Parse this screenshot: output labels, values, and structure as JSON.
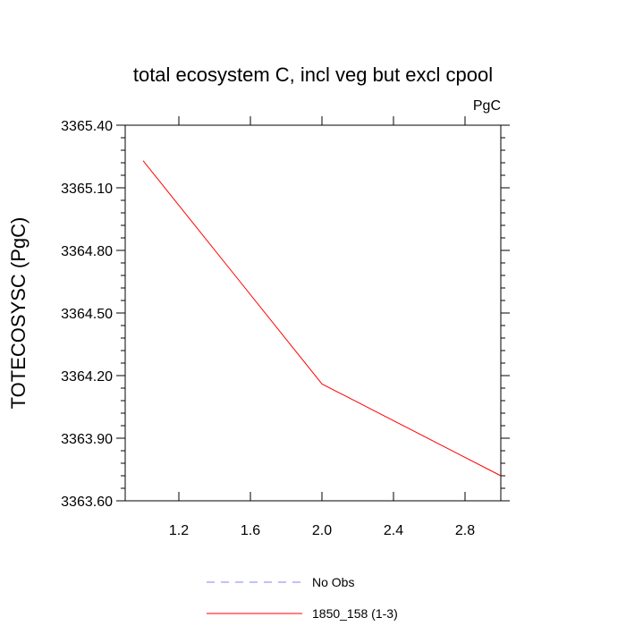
{
  "chart_data": {
    "type": "line",
    "title": "total ecosystem C, incl veg but excl cpool",
    "units_label": "PgC",
    "xlabel": "",
    "ylabel": "TOTECOSYSC  (PgC)",
    "xlim": [
      0.9,
      3.0
    ],
    "ylim": [
      3363.6,
      3365.4
    ],
    "xticks": [
      "1.2",
      "1.6",
      "2.0",
      "2.4",
      "2.8"
    ],
    "yticks": [
      "3365.40",
      "3365.10",
      "3364.80",
      "3364.50",
      "3364.20",
      "3363.90",
      "3363.60"
    ],
    "grid": false,
    "legend_position": "bottom-center",
    "series": [
      {
        "name": "1850_158 (1-3)",
        "color": "#ff0000",
        "style": "solid",
        "x": [
          1.0,
          2.0,
          3.0
        ],
        "y": [
          3365.23,
          3364.16,
          3363.72
        ]
      }
    ],
    "legend": [
      {
        "label": "No Obs",
        "color": "#8080ff",
        "style": "dashed"
      },
      {
        "label": "1850_158 (1-3)",
        "color": "#ff0000",
        "style": "solid"
      }
    ]
  }
}
